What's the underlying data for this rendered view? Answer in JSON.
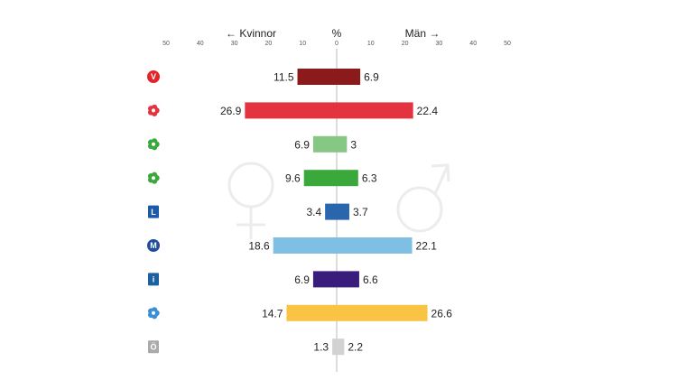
{
  "chart_data": {
    "type": "bar",
    "orientation": "horizontal-diverging",
    "title": "",
    "left_label": "← Kvinnor",
    "center_label": "%",
    "right_label": "Män →",
    "xlim": [
      -50,
      50
    ],
    "ticks": [
      50,
      40,
      30,
      20,
      10,
      0,
      10,
      20,
      30,
      40,
      50
    ],
    "grid": false,
    "categories": [
      "V",
      "S",
      "C",
      "MP",
      "L",
      "M",
      "KD",
      "SD",
      "Ö"
    ],
    "series": [
      {
        "name": "Kvinnor",
        "values": [
          11.5,
          26.9,
          6.9,
          9.6,
          3.4,
          18.6,
          6.9,
          14.7,
          1.3
        ]
      },
      {
        "name": "Män",
        "values": [
          6.9,
          22.4,
          3,
          6.3,
          3.7,
          22.1,
          6.6,
          26.6,
          2.2
        ]
      }
    ],
    "colors_women": [
      "#8b1a1a",
      "#e3333f",
      "#86c784",
      "#3aa83a",
      "#2a66ae",
      "#7fbfe3",
      "#3a1c7c",
      "#f9c444",
      "#d2d2d2"
    ],
    "colors_men": [
      "#8b1a1a",
      "#e3333f",
      "#86c784",
      "#3aa83a",
      "#2a66ae",
      "#7fbfe3",
      "#3a1c7c",
      "#f9c444",
      "#d2d2d2"
    ],
    "party_icons": [
      {
        "name": "v-logo-icon",
        "color": "#e3242b",
        "letter": "V"
      },
      {
        "name": "s-rose-logo-icon",
        "color": "#e3333f",
        "letter": ""
      },
      {
        "name": "c-clover-logo-icon",
        "color": "#3aa83a",
        "letter": ""
      },
      {
        "name": "mp-flower-logo-icon",
        "color": "#3aa83a",
        "letter": ""
      },
      {
        "name": "l-logo-icon",
        "color": "#1a5aa8",
        "letter": "L"
      },
      {
        "name": "m-logo-icon",
        "color": "#1f4f9c",
        "letter": "M"
      },
      {
        "name": "kd-logo-icon",
        "color": "#1b61a0",
        "letter": "i"
      },
      {
        "name": "sd-flower-logo-icon",
        "color": "#3a8fd6",
        "letter": ""
      },
      {
        "name": "ovriga-logo-icon",
        "color": "#aaaaaa",
        "letter": "Ö"
      }
    ]
  }
}
